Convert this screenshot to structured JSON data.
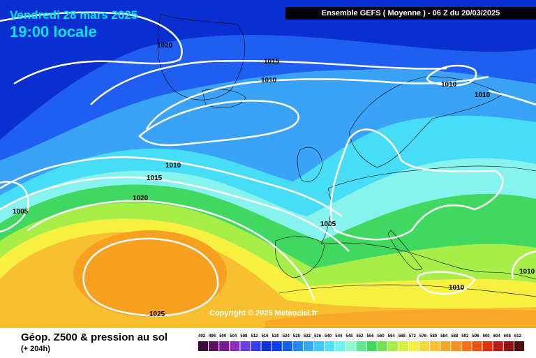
{
  "header": {
    "date": "Vendredi 28 mars 2025",
    "time": "19:00 locale",
    "model": "Ensemble GEFS  ( Moyenne )  -  06 Z du 20/03/2025"
  },
  "map": {
    "copyright": "Copyright © 2025 Meteociel.fr",
    "isobar_labels": [
      "1020",
      "1015",
      "1010",
      "1010",
      "1010",
      "1010",
      "1015",
      "1020",
      "1005",
      "1005",
      "1025",
      "1010",
      "1010"
    ],
    "colors": {
      "dark_blue": "#0a2fd0",
      "blue": "#1f5ef0",
      "light_blue": "#3aa2f7",
      "cyan": "#48ddf7",
      "aqua": "#86f3ee",
      "green": "#40d860",
      "lime": "#a8ee48",
      "yellow": "#f8f040",
      "orange": "#f8a020",
      "dark_orange": "#f08a10"
    }
  },
  "footer": {
    "title": "Géop. Z500 & pression au sol",
    "subtitle": "(+ 204h)",
    "scale_values": [
      "492",
      "496",
      "500",
      "504",
      "508",
      "512",
      "516",
      "520",
      "524",
      "528",
      "532",
      "536",
      "540",
      "544",
      "548",
      "552",
      "556",
      "560",
      "564",
      "568",
      "572",
      "576",
      "580",
      "584",
      "588",
      "592",
      "596",
      "600",
      "604",
      "608",
      "612"
    ],
    "scale_colors": [
      "#3a0a3a",
      "#5a1060",
      "#7a1a90",
      "#8a30c0",
      "#6a40e0",
      "#3040f0",
      "#1030e0",
      "#0a40f0",
      "#1060f8",
      "#2088f8",
      "#30a8f8",
      "#40c8f8",
      "#50e0f8",
      "#70f0f0",
      "#90f8d0",
      "#60e890",
      "#40d860",
      "#70e050",
      "#a8ee48",
      "#d8f040",
      "#f8f040",
      "#f8d838",
      "#f8c030",
      "#f8a828",
      "#f89020",
      "#f87018",
      "#f05010",
      "#e03010",
      "#c01818",
      "#901010",
      "#500808"
    ]
  }
}
